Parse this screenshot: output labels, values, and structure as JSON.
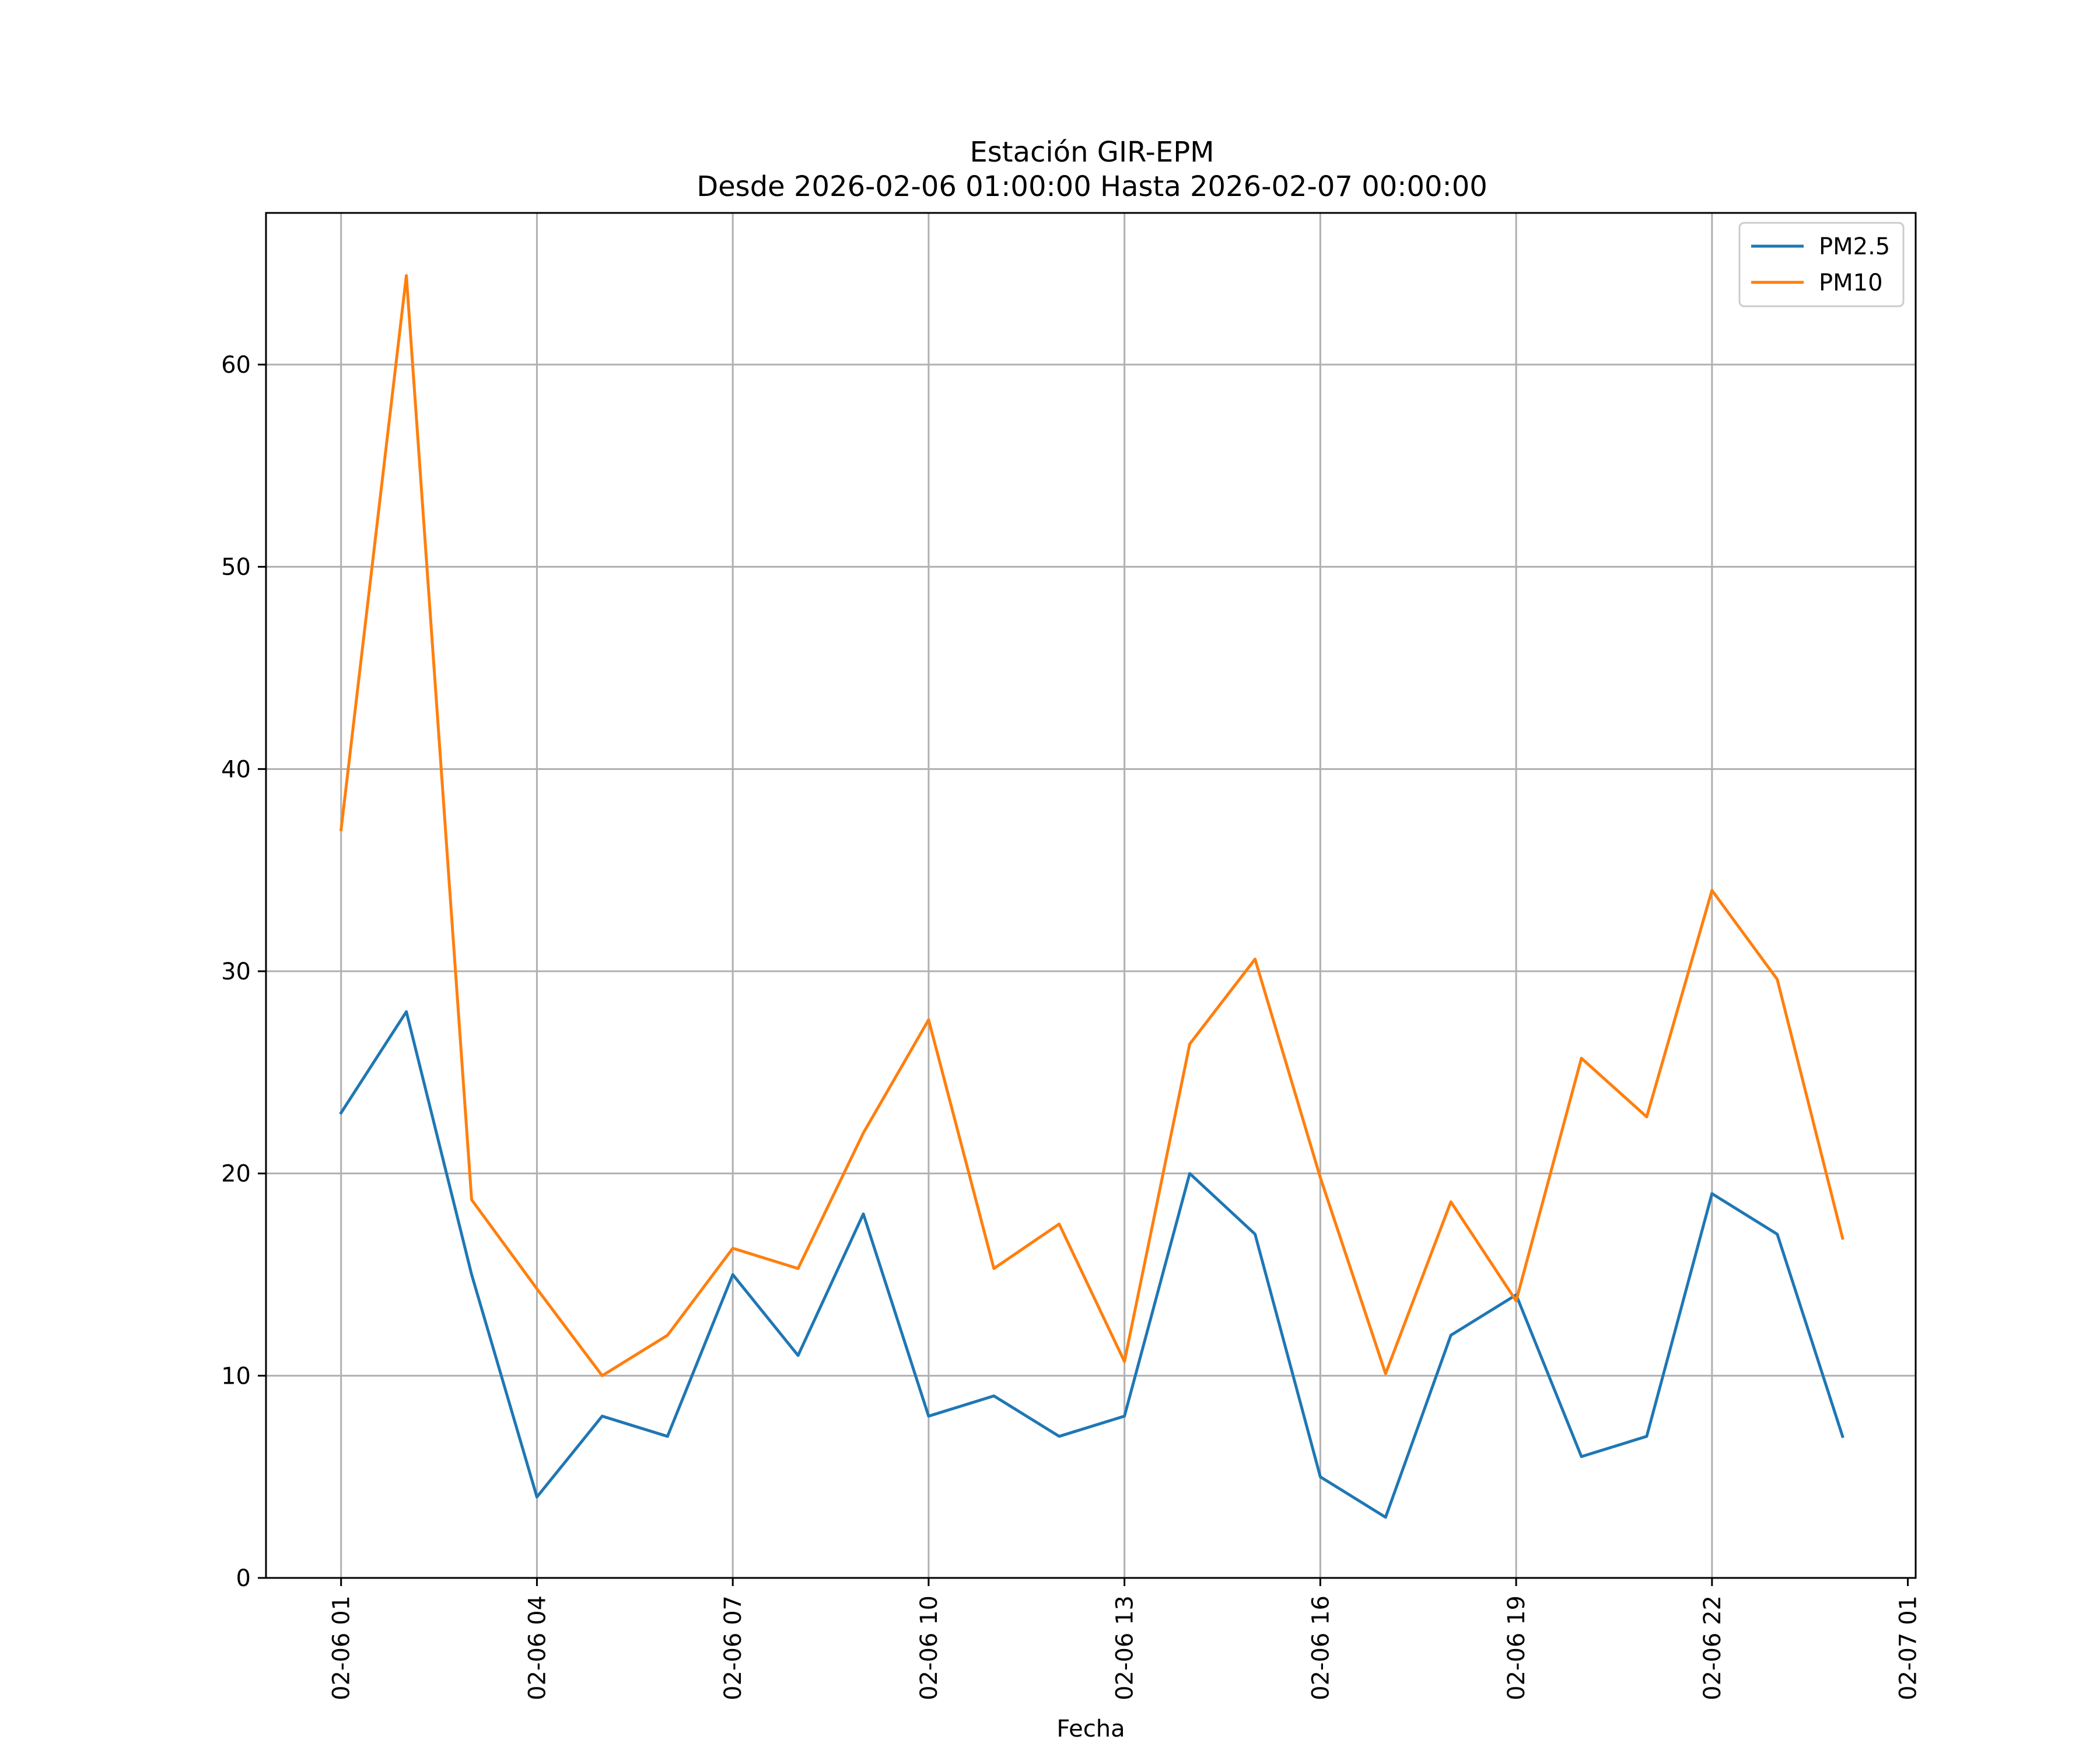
{
  "chart_data": {
    "type": "line",
    "title": "Estación GIR-EPM",
    "subtitle": "Desde 2026-02-06 01:00:00 Hasta 2026-02-07 00:00:00",
    "xlabel": "Fecha",
    "ylabel": "",
    "x_unit": "hour",
    "x": [
      1,
      2,
      3,
      4,
      5,
      6,
      7,
      8,
      9,
      10,
      11,
      12,
      13,
      14,
      15,
      16,
      17,
      18,
      19,
      20,
      21,
      22,
      23,
      24
    ],
    "xlim": [
      -0.15,
      25.12
    ],
    "ylim": [
      0,
      67.5
    ],
    "xticks": [
      1,
      4,
      7,
      10,
      13,
      16,
      19,
      22,
      25
    ],
    "xtick_labels": [
      "02-06 01",
      "02-06 04",
      "02-06 07",
      "02-06 10",
      "02-06 13",
      "02-06 16",
      "02-06 19",
      "02-06 22",
      "02-07 01"
    ],
    "yticks": [
      0,
      10,
      20,
      30,
      40,
      50,
      60
    ],
    "ytick_labels": [
      "0",
      "10",
      "20",
      "30",
      "40",
      "50",
      "60"
    ],
    "grid": true,
    "legend_position": "top-right",
    "series": [
      {
        "name": "PM2.5",
        "color": "#1f77b4",
        "values": [
          23,
          28,
          15,
          4,
          8,
          7,
          15,
          11,
          18,
          8,
          9,
          7,
          8,
          20,
          17,
          5,
          3,
          12,
          14,
          6,
          7,
          19,
          17,
          7
        ]
      },
      {
        "name": "PM10",
        "color": "#ff7f0e",
        "values": [
          37,
          64.4,
          18.7,
          14.3,
          10,
          12,
          16.3,
          15.3,
          22,
          27.6,
          15.3,
          17.5,
          10.7,
          26.4,
          30.6,
          19.8,
          10.1,
          18.6,
          13.7,
          25.7,
          22.8,
          34,
          29.6,
          16.8
        ]
      }
    ]
  }
}
